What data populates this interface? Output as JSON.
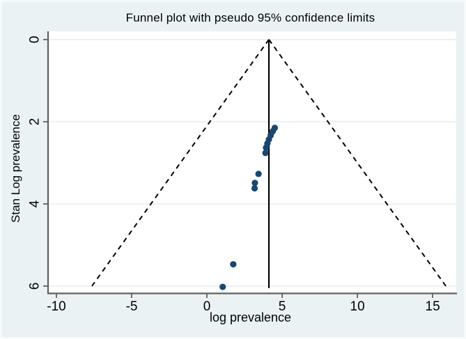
{
  "chart_data": {
    "type": "scatter",
    "title": "Funnel plot with pseudo 95% confidence limits",
    "xlabel": "log prevalence",
    "ylabel": "Stan Log prevalence",
    "x_ticks": [
      -10,
      -5,
      0,
      5,
      10,
      15
    ],
    "y_ticks": [
      0,
      2,
      4,
      6
    ],
    "xlim": [
      -10.51,
      16.57
    ],
    "ylim": [
      -0.2,
      6.17
    ],
    "y_axis_inverted": true,
    "grid": "horizontal-only",
    "legend": "none",
    "estimate_x": 4.12,
    "estimate_line_y": [
      0,
      6.05
    ],
    "pseudo_ci_limits": {
      "left_line": {
        "from_xy": [
          4.12,
          0
        ],
        "to_xy": [
          -7.64,
          6
        ]
      },
      "right_line": {
        "from_xy": [
          4.12,
          0
        ],
        "to_xy": [
          15.88,
          6
        ]
      }
    },
    "points": [
      [
        1.05,
        6.02
      ],
      [
        1.75,
        5.47
      ],
      [
        3.17,
        3.62
      ],
      [
        3.19,
        3.49
      ],
      [
        3.43,
        3.27
      ],
      [
        3.89,
        2.76
      ],
      [
        3.93,
        2.63
      ],
      [
        4.02,
        2.53
      ],
      [
        4.12,
        2.43
      ],
      [
        4.24,
        2.33
      ],
      [
        4.38,
        2.23
      ],
      [
        4.51,
        2.15
      ]
    ],
    "colors": {
      "background": "#eaf2f3",
      "plot_background": "#ffffff",
      "gridline": "#e2edee",
      "axis": "#606060",
      "marker": "#1a476f",
      "ci_line": "#000000",
      "estimate_line": "#000000",
      "text": "#000000"
    }
  }
}
